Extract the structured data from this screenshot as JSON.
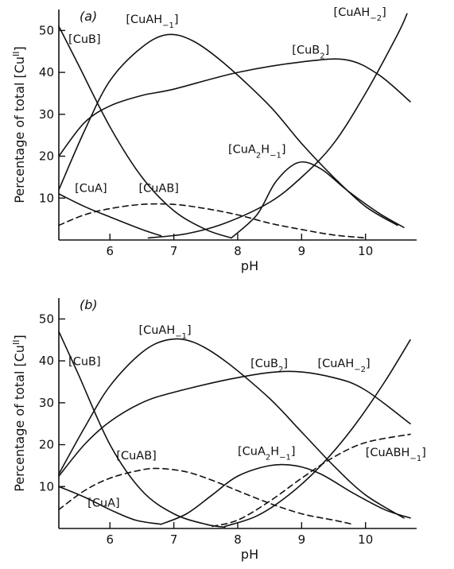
{
  "chart_data": [
    {
      "type": "line",
      "panel_label": "(a)",
      "xlabel": "pH",
      "ylabel": "Percentage of total [Cu^II]",
      "ylabel_parts": {
        "main": "Percentage of total [Cu",
        "sup": "II",
        "close": "]"
      },
      "xlim": [
        5.2,
        10.8
      ],
      "ylim": [
        0,
        55
      ],
      "xticks": [
        6,
        7,
        8,
        9,
        10
      ],
      "yticks": [
        10,
        20,
        30,
        40,
        50
      ],
      "grid": false,
      "series": [
        {
          "name": "[CuB]",
          "label_parts": [
            {
              "t": "[CuB]"
            }
          ],
          "style": "solid",
          "points": [
            [
              5.2,
              51
            ],
            [
              5.5,
              42
            ],
            [
              6.0,
              27
            ],
            [
              6.5,
              15
            ],
            [
              7.0,
              7
            ],
            [
              7.5,
              2.5
            ],
            [
              7.9,
              0.5
            ]
          ]
        },
        {
          "name": "[CuA]",
          "label_parts": [
            {
              "t": "[CuA]"
            }
          ],
          "style": "solid",
          "points": [
            [
              5.2,
              11
            ],
            [
              5.6,
              8
            ],
            [
              6.0,
              5.5
            ],
            [
              6.5,
              2.5
            ],
            [
              6.8,
              1
            ]
          ]
        },
        {
          "name": "[CuAH₋₁]",
          "label_parts": [
            {
              "t": "[CuAH"
            },
            {
              "t": "−1",
              "sub": true
            },
            {
              "t": "]"
            }
          ],
          "style": "solid",
          "points": [
            [
              5.2,
              12
            ],
            [
              5.6,
              26
            ],
            [
              6.0,
              38
            ],
            [
              6.5,
              46
            ],
            [
              6.9,
              49
            ],
            [
              7.3,
              47.5
            ],
            [
              7.8,
              42
            ],
            [
              8.5,
              32
            ],
            [
              9.0,
              23
            ],
            [
              9.5,
              15
            ],
            [
              10.0,
              8
            ],
            [
              10.5,
              3.5
            ]
          ]
        },
        {
          "name": "[CuB₂]",
          "label_parts": [
            {
              "t": "[CuB"
            },
            {
              "t": "2",
              "sub": true
            },
            {
              "t": "]"
            }
          ],
          "style": "solid",
          "points": [
            [
              5.2,
              20
            ],
            [
              5.6,
              28
            ],
            [
              6.0,
              32
            ],
            [
              6.5,
              34.5
            ],
            [
              7.0,
              36
            ],
            [
              8.0,
              40
            ],
            [
              9.0,
              42.5
            ],
            [
              9.7,
              43
            ],
            [
              10.2,
              39.5
            ],
            [
              10.7,
              33
            ]
          ]
        },
        {
          "name": "[CuAH₋₂]",
          "label_parts": [
            {
              "t": "[CuAH"
            },
            {
              "t": "−2",
              "sub": true
            },
            {
              "t": "]"
            }
          ],
          "style": "solid",
          "points": [
            [
              6.6,
              0.5
            ],
            [
              7.2,
              1.5
            ],
            [
              7.8,
              4
            ],
            [
              8.5,
              9
            ],
            [
              9.0,
              15
            ],
            [
              9.5,
              23
            ],
            [
              10.0,
              35
            ],
            [
              10.5,
              49
            ],
            [
              10.65,
              54
            ]
          ]
        },
        {
          "name": "[CuA₂H₋₁]",
          "label_parts": [
            {
              "t": "[CuA"
            },
            {
              "t": "2",
              "sub": true
            },
            {
              "t": "H"
            },
            {
              "t": "−1",
              "sub": true
            },
            {
              "t": "]"
            }
          ],
          "style": "solid",
          "points": [
            [
              7.9,
              0.5
            ],
            [
              8.3,
              6
            ],
            [
              8.6,
              14
            ],
            [
              8.95,
              18.5
            ],
            [
              9.3,
              17
            ],
            [
              9.7,
              12
            ],
            [
              10.2,
              6.5
            ],
            [
              10.6,
              3
            ]
          ]
        },
        {
          "name": "[CuAB]",
          "label_parts": [
            {
              "t": "[CuAB]"
            }
          ],
          "style": "dashed",
          "points": [
            [
              5.2,
              3.5
            ],
            [
              5.6,
              6
            ],
            [
              6.0,
              7.5
            ],
            [
              6.5,
              8.5
            ],
            [
              7.0,
              8.5
            ],
            [
              7.5,
              7.5
            ],
            [
              8.0,
              6
            ],
            [
              8.5,
              4
            ],
            [
              9.0,
              2.5
            ],
            [
              9.5,
              1.2
            ],
            [
              10.0,
              0.5
            ]
          ]
        }
      ],
      "annotations": [
        {
          "text": "[CuB]",
          "ref": 0,
          "x": 5.35,
          "y": 47
        },
        {
          "text": "[CuAH₋₁]",
          "ref": 2,
          "x": 6.25,
          "y": 51.8
        },
        {
          "text": "[CuB₂]",
          "ref": 3,
          "x": 8.85,
          "y": 44.5
        },
        {
          "text": "[CuAH₋₂]",
          "ref": 4,
          "x": 9.5,
          "y": 53.5
        },
        {
          "text": "[CuA₂H₋₁]",
          "ref": 5,
          "x": 7.85,
          "y": 20.8
        },
        {
          "text": "[CuA]",
          "ref": 1,
          "x": 5.45,
          "y": 11.5
        },
        {
          "text": "[CuAB]",
          "ref": 6,
          "x": 6.45,
          "y": 11.5
        }
      ]
    },
    {
      "type": "line",
      "panel_label": "(b)",
      "xlabel": "pH",
      "ylabel": "Percentage of total [Cu^II]",
      "ylabel_parts": {
        "main": "Percentage of total [Cu",
        "sup": "II",
        "close": "]"
      },
      "xlim": [
        5.2,
        10.8
      ],
      "ylim": [
        0,
        55
      ],
      "xticks": [
        6,
        7,
        8,
        9,
        10
      ],
      "yticks": [
        10,
        20,
        30,
        40,
        50
      ],
      "grid": false,
      "series": [
        {
          "name": "[CuB]",
          "label_parts": [
            {
              "t": "[CuB]"
            }
          ],
          "style": "solid",
          "points": [
            [
              5.2,
              47
            ],
            [
              5.5,
              37
            ],
            [
              6.0,
              20
            ],
            [
              6.5,
              9
            ],
            [
              7.0,
              3.5
            ],
            [
              7.5,
              1
            ],
            [
              7.8,
              0.3
            ]
          ]
        },
        {
          "name": "[CuA]",
          "label_parts": [
            {
              "t": "[CuA]"
            }
          ],
          "style": "solid",
          "points": [
            [
              5.2,
              10
            ],
            [
              5.6,
              7.5
            ],
            [
              6.0,
              4.5
            ],
            [
              6.4,
              2
            ],
            [
              6.8,
              1
            ]
          ]
        },
        {
          "name": "[CuAH₋₁]",
          "label_parts": [
            {
              "t": "[CuAH"
            },
            {
              "t": "−1",
              "sub": true
            },
            {
              "t": "]"
            }
          ],
          "style": "solid",
          "points": [
            [
              5.2,
              13
            ],
            [
              5.6,
              24
            ],
            [
              6.0,
              34
            ],
            [
              6.5,
              42
            ],
            [
              6.9,
              45
            ],
            [
              7.3,
              44.5
            ],
            [
              7.8,
              40
            ],
            [
              8.5,
              31
            ],
            [
              9.0,
              23
            ],
            [
              9.5,
              15
            ],
            [
              10.0,
              8
            ],
            [
              10.6,
              2.5
            ]
          ]
        },
        {
          "name": "[CuB₂]",
          "label_parts": [
            {
              "t": "[CuB"
            },
            {
              "t": "2",
              "sub": true
            },
            {
              "t": "]"
            }
          ],
          "style": "solid",
          "points": [
            [
              5.2,
              12.5
            ],
            [
              5.6,
              20
            ],
            [
              6.0,
              25.5
            ],
            [
              6.5,
              30
            ],
            [
              7.0,
              32.5
            ],
            [
              8.0,
              36
            ],
            [
              8.8,
              37.5
            ],
            [
              9.5,
              36
            ],
            [
              10.0,
              33
            ],
            [
              10.7,
              25
            ]
          ]
        },
        {
          "name": "[CuAH₋₂]",
          "label_parts": [
            {
              "t": "[CuAH"
            },
            {
              "t": "−2",
              "sub": true
            },
            {
              "t": "]"
            }
          ],
          "style": "solid",
          "points": [
            [
              7.8,
              0.5
            ],
            [
              8.3,
              3
            ],
            [
              8.8,
              8
            ],
            [
              9.3,
              15
            ],
            [
              9.8,
              24
            ],
            [
              10.3,
              35
            ],
            [
              10.7,
              45
            ]
          ]
        },
        {
          "name": "[CuA₂H₋₁]",
          "label_parts": [
            {
              "t": "[CuA"
            },
            {
              "t": "2",
              "sub": true
            },
            {
              "t": "H"
            },
            {
              "t": "−1",
              "sub": true
            },
            {
              "t": "]"
            }
          ],
          "style": "solid",
          "points": [
            [
              6.8,
              1
            ],
            [
              7.2,
              3.5
            ],
            [
              7.6,
              8
            ],
            [
              8.0,
              12.5
            ],
            [
              8.5,
              15
            ],
            [
              8.9,
              15
            ],
            [
              9.3,
              13
            ],
            [
              9.8,
              8.5
            ],
            [
              10.3,
              4.5
            ],
            [
              10.7,
              2.5
            ]
          ]
        },
        {
          "name": "[CuAB]",
          "label_parts": [
            {
              "t": "[CuAB]"
            }
          ],
          "style": "dashed",
          "points": [
            [
              5.2,
              4.5
            ],
            [
              5.6,
              9
            ],
            [
              6.0,
              12
            ],
            [
              6.5,
              14
            ],
            [
              6.8,
              14.3
            ],
            [
              7.2,
              13.5
            ],
            [
              7.6,
              11.5
            ],
            [
              8.0,
              9
            ],
            [
              8.5,
              6
            ],
            [
              9.0,
              3.5
            ],
            [
              9.5,
              2
            ],
            [
              9.8,
              1
            ]
          ]
        },
        {
          "name": "[CuABH₋₁]",
          "label_parts": [
            {
              "t": "[CuABH"
            },
            {
              "t": "−1",
              "sub": true
            },
            {
              "t": "]"
            }
          ],
          "style": "dashed",
          "points": [
            [
              7.6,
              0.5
            ],
            [
              8.0,
              2
            ],
            [
              8.5,
              6.5
            ],
            [
              9.0,
              12
            ],
            [
              9.5,
              17
            ],
            [
              10.0,
              20.5
            ],
            [
              10.7,
              22.5
            ]
          ]
        }
      ],
      "annotations": [
        {
          "text": "[CuB]",
          "ref": 0,
          "x": 5.35,
          "y": 39
        },
        {
          "text": "[CuAH₋₁]",
          "ref": 2,
          "x": 6.45,
          "y": 46.5
        },
        {
          "text": "[CuB₂]",
          "ref": 3,
          "x": 8.2,
          "y": 38.5
        },
        {
          "text": "[CuAH₋₂]",
          "ref": 4,
          "x": 9.25,
          "y": 38.5
        },
        {
          "text": "[CuA₂H₋₁]",
          "ref": 5,
          "x": 8.0,
          "y": 17.5
        },
        {
          "text": "[CuAB]",
          "ref": 6,
          "x": 6.1,
          "y": 16.5
        },
        {
          "text": "[CuA]",
          "ref": 1,
          "x": 5.65,
          "y": 5.2
        },
        {
          "text": "[CuABH₋₁]",
          "ref": 7,
          "x": 10.0,
          "y": 17.3
        }
      ]
    }
  ]
}
